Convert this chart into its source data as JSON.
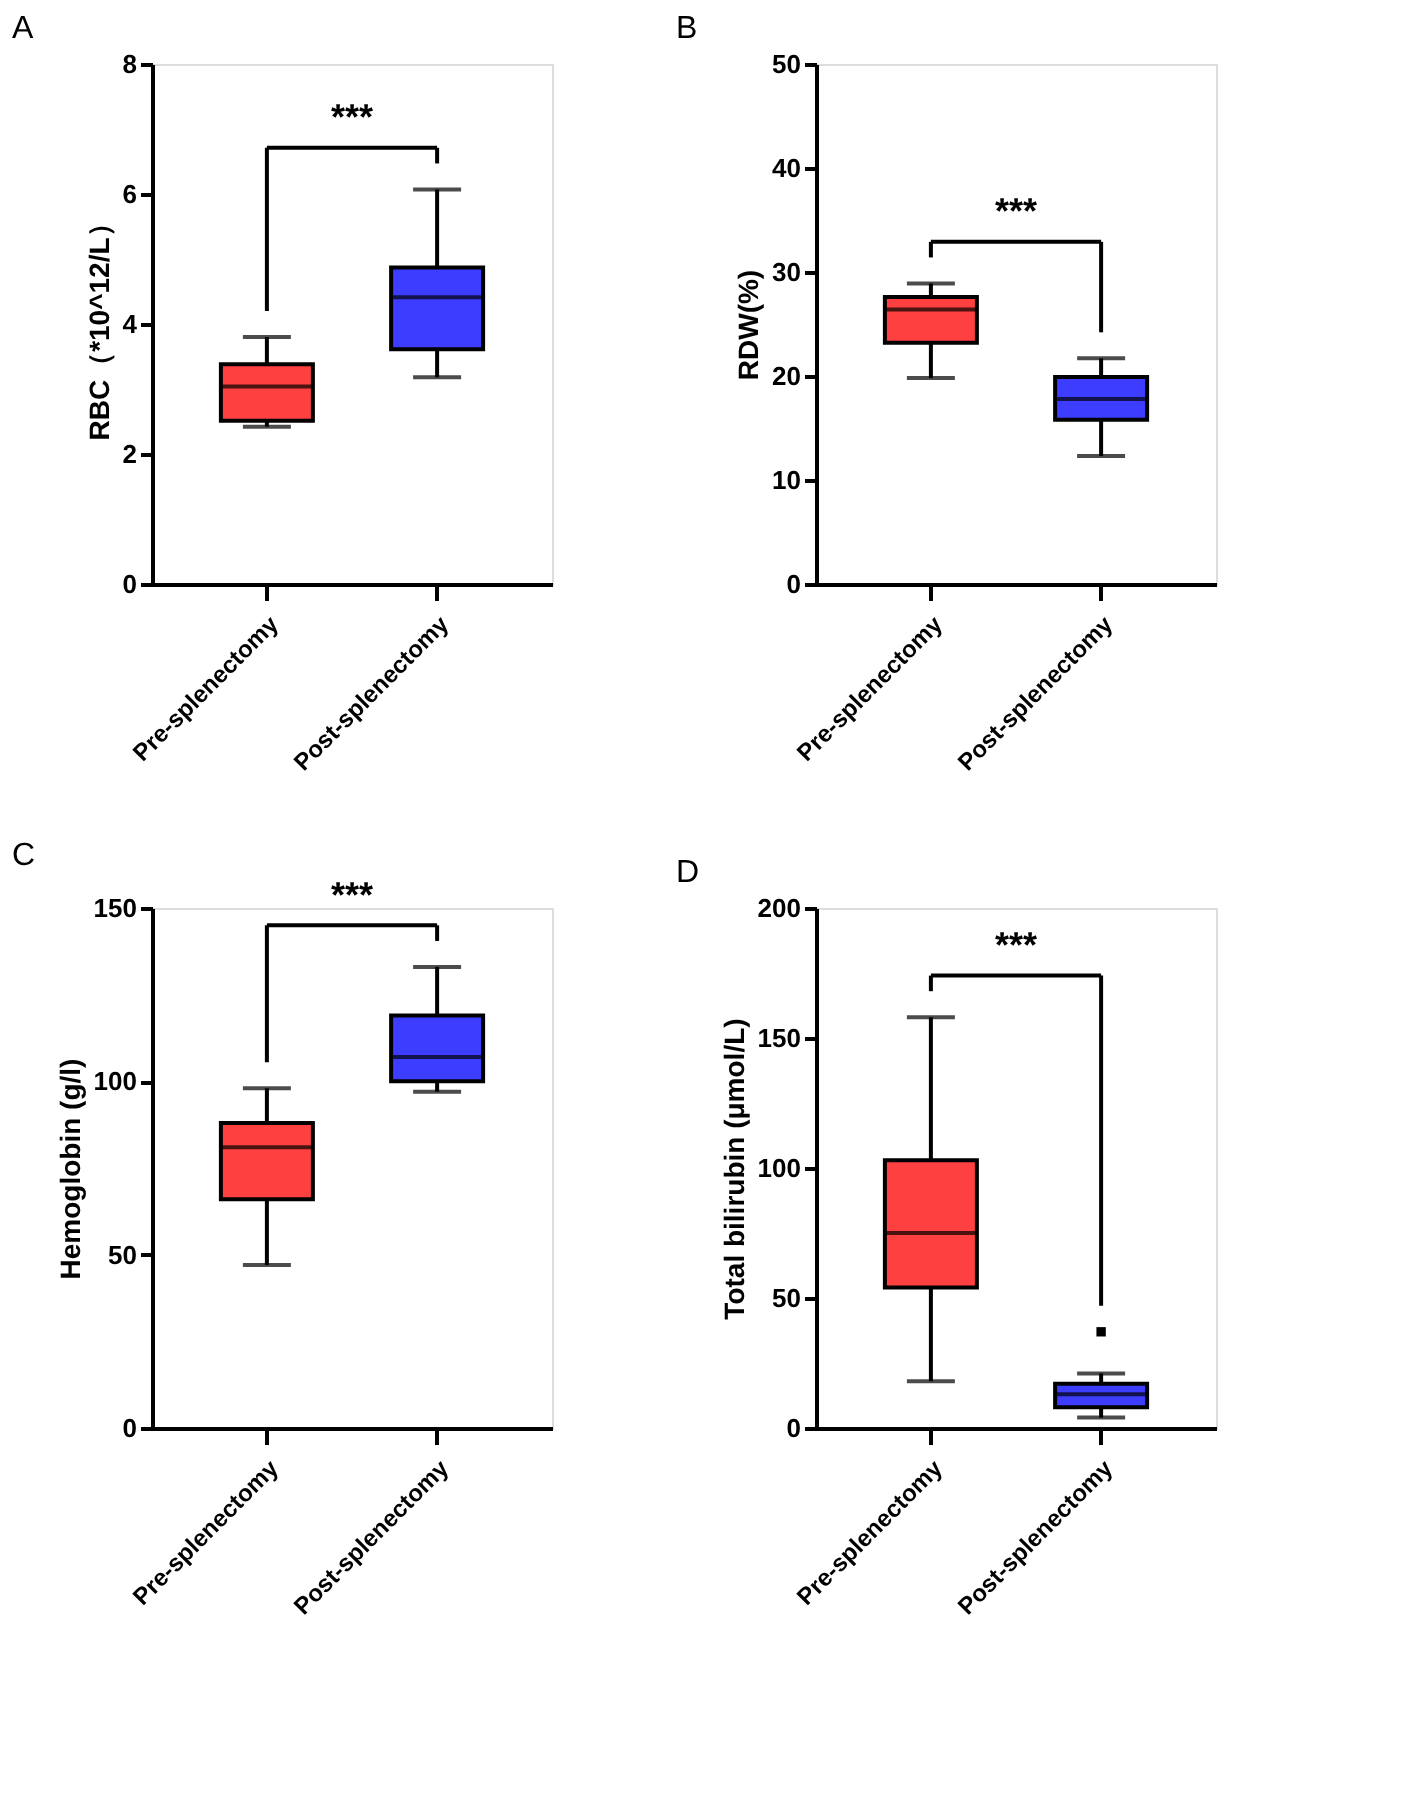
{
  "chart_data": [
    {
      "type": "box",
      "title": "A",
      "ylabel": "RBC（*10^12/L）",
      "categories": [
        "Pre-splenectomy",
        "Post-splenectomy"
      ],
      "colors": [
        "#ff4040",
        "#3d3dff"
      ],
      "ylim": [
        0,
        8
      ],
      "yticks": [
        0,
        2,
        4,
        6,
        8
      ],
      "grid": false,
      "legend": false,
      "annotations": [
        "***"
      ],
      "boxes": [
        {
          "low": 2.42,
          "q1": 2.51,
          "median": 3.04,
          "q3": 3.38,
          "high": 3.8
        },
        {
          "low": 3.18,
          "q1": 3.61,
          "median": 4.41,
          "q3": 4.87,
          "high": 6.07
        }
      ]
    },
    {
      "type": "box",
      "title": "B",
      "ylabel": "RDW(%)",
      "categories": [
        "Pre-splenectomy",
        "Post-splenectomy"
      ],
      "colors": [
        "#ff4040",
        "#3d3dff"
      ],
      "ylim": [
        0,
        50
      ],
      "yticks": [
        0,
        10,
        20,
        30,
        40,
        50
      ],
      "grid": false,
      "legend": false,
      "annotations": [
        "***"
      ],
      "boxes": [
        {
          "low": 19.8,
          "q1": 23.2,
          "median": 26.4,
          "q3": 27.6,
          "high": 28.9
        },
        {
          "low": 12.3,
          "q1": 15.8,
          "median": 17.8,
          "q3": 19.9,
          "high": 21.7
        }
      ]
    },
    {
      "type": "box",
      "title": "C",
      "ylabel": "Hemoglobin (g/l)",
      "categories": [
        "Pre-splenectomy",
        "Post-splenectomy"
      ],
      "colors": [
        "#ff4040",
        "#3d3dff"
      ],
      "ylim": [
        0,
        150
      ],
      "yticks": [
        0,
        50,
        100,
        150
      ],
      "grid": false,
      "legend": false,
      "annotations": [
        "***"
      ],
      "boxes": [
        {
          "low": 47,
          "q1": 66,
          "median": 81,
          "q3": 88,
          "high": 98
        },
        {
          "low": 97,
          "q1": 100,
          "median": 107,
          "q3": 119,
          "high": 133
        }
      ]
    },
    {
      "type": "box",
      "title": "D",
      "ylabel": "Total bilirubin (μmol/L)",
      "categories": [
        "Pre-splenectomy",
        "Post-splenectomy"
      ],
      "colors": [
        "#ff4040",
        "#3d3dff"
      ],
      "ylim": [
        0,
        200
      ],
      "yticks": [
        0,
        50,
        100,
        150,
        200
      ],
      "grid": false,
      "legend": false,
      "annotations": [
        "***"
      ],
      "boxes": [
        {
          "low": 18,
          "q1": 54,
          "median": 75,
          "q3": 103,
          "high": 158
        },
        {
          "low": 4,
          "q1": 8,
          "median": 13,
          "q3": 17,
          "high": 21,
          "outliers": [
            37
          ]
        }
      ]
    }
  ]
}
